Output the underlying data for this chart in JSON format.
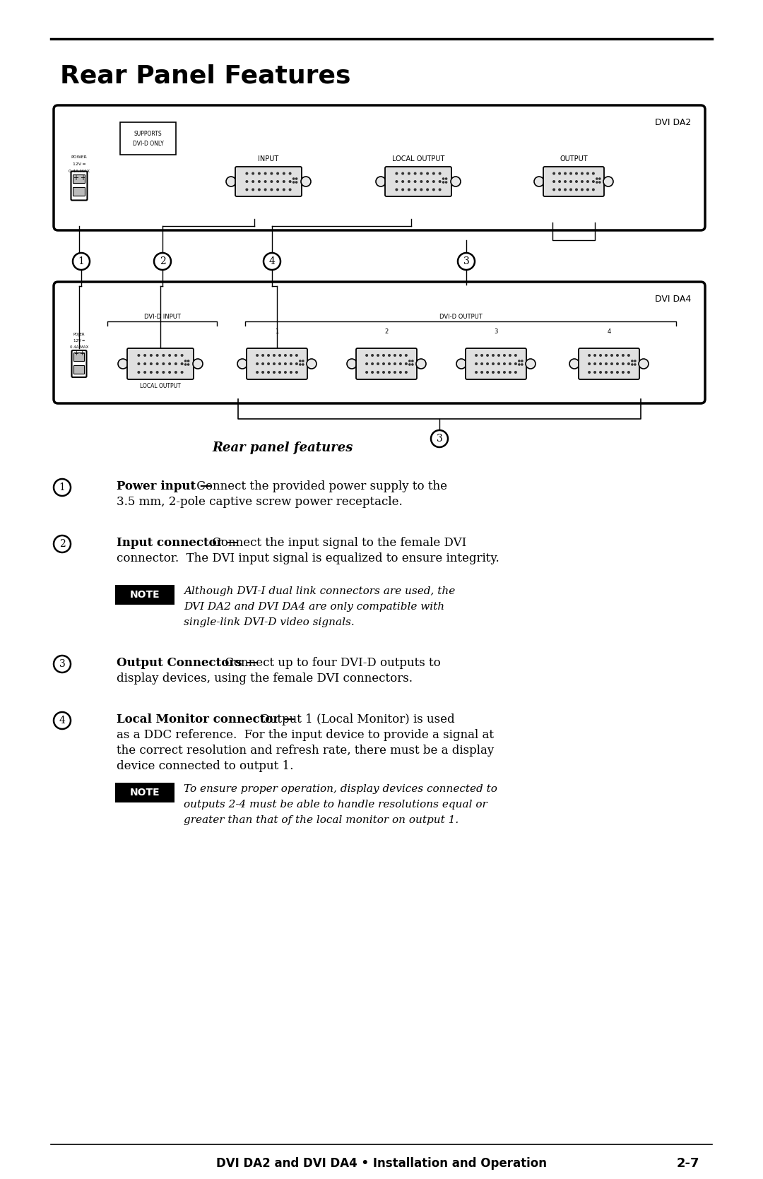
{
  "bg_color": "#ffffff",
  "heading": "Rear Panel Features",
  "subheading": "Rear panel features",
  "footer": "DVI DA2 and DVI DA4 • Installation and Operation",
  "footer_page": "2-7",
  "item1_bold": "Power input —",
  "item1_text1": " Connect the provided power supply to the",
  "item1_text2": "3.5 mm, 2-pole captive screw power receptacle.",
  "item2_bold": "Input connector —",
  "item2_text1": " Connect the input signal to the female DVI",
  "item2_text2": "connector.  The DVI input signal is equalized to ensure integrity.",
  "note1_line1": "Although DVI-I dual link connectors are used, the",
  "note1_line2": "DVI DA2 and DVI DA4 are only compatible with",
  "note1_line3": "single-link DVI-D video signals.",
  "item3_bold": "Output Connectors —",
  "item3_text1": " Connect up to four DVI-D outputs to",
  "item3_text2": "display devices, using the female DVI connectors.",
  "item4_bold": "Local Monitor connector —",
  "item4_text1": " Output 1 (Local Monitor) is used",
  "item4_text2": "as a DDC reference.  For the input device to provide a signal at",
  "item4_text3": "the correct resolution and refresh rate, there must be a display",
  "item4_text4": "device connected to output 1.",
  "note2_line1": "To ensure proper operation, display devices connected to",
  "note2_line2": "outputs 2-4 must be able to handle resolutions equal or",
  "note2_line3": "greater than that of the local monitor on output 1."
}
